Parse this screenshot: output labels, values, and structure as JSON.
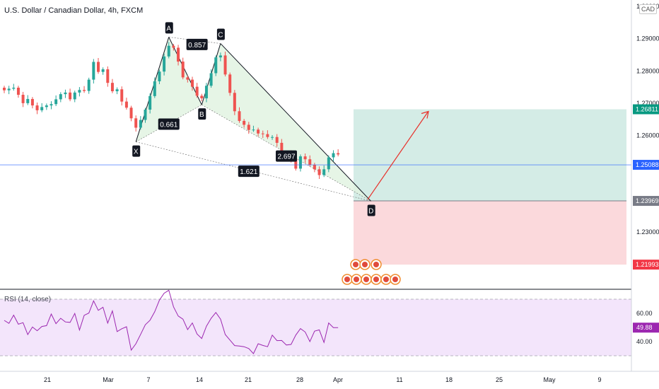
{
  "header": {
    "title": "U.S. Dollar / Canadian Dollar, 4h, FXCM",
    "currency": "CAD"
  },
  "colors": {
    "up": "#26a69a",
    "down": "#ef5350",
    "candle": "#131722",
    "pattern_fill": "#e0f2e0",
    "pattern_line": "#131722",
    "target_zone": "#d4ece6",
    "stop_zone": "#fbd9dc",
    "price_line": "#2962ff",
    "rsi_line": "#9c27b0",
    "rsi_band": "#f3e5fb",
    "arrow": "#e8312b"
  },
  "price_axis": {
    "min": 1.2125,
    "max": 1.302,
    "ticks": [
      "1.30000",
      "1.29000",
      "1.28000",
      "1.27000",
      "1.26000",
      "1.25000",
      "1.24000",
      "1.23000",
      "1.22000"
    ]
  },
  "price_labels": [
    {
      "value": 1.26811,
      "text": "1.26811",
      "bg": "#089981"
    },
    {
      "value": 1.25088,
      "text": "1.25088",
      "bg": "#2962ff"
    },
    {
      "value": 1.23969,
      "text": "1.23969",
      "bg": "#787b86"
    },
    {
      "value": 1.21993,
      "text": "1.21993",
      "bg": "#f23645"
    }
  ],
  "time_axis": {
    "labels": [
      "21",
      "Mar",
      "7",
      "14",
      "21",
      "28",
      "Apr",
      "11",
      "18",
      "25",
      "May",
      "9"
    ]
  },
  "pattern": {
    "points": [
      {
        "label": "X",
        "bar": 28,
        "price": 1.258
      },
      {
        "label": "A",
        "bar": 35,
        "price": 1.2905
      },
      {
        "label": "B",
        "bar": 42,
        "price": 1.2695
      },
      {
        "label": "C",
        "bar": 46,
        "price": 1.2885
      },
      {
        "label": "D",
        "bar": 78,
        "price": 1.2396
      }
    ],
    "ratios": [
      {
        "text": "0.857",
        "bar": 41,
        "price": 1.2882
      },
      {
        "text": "0.661",
        "bar": 35,
        "price": 1.2635
      },
      {
        "text": "2.697",
        "bar": 60,
        "price": 1.2536
      },
      {
        "text": "1.621",
        "bar": 52,
        "price": 1.2489
      }
    ]
  },
  "trade": {
    "target": 1.26811,
    "entry": 1.23969,
    "stop": 1.21993
  },
  "chart_data": {
    "type": "candlestick",
    "title": "U.S. Dollar / Canadian Dollar, 4h, FXCM",
    "y_range": [
      1.2125,
      1.302
    ],
    "close": [
      1.274,
      1.2745,
      1.2748,
      1.2726,
      1.27,
      1.2713,
      1.2693,
      1.2678,
      1.2688,
      1.2693,
      1.2697,
      1.2712,
      1.2728,
      1.2733,
      1.2712,
      1.2733,
      1.2741,
      1.2738,
      1.2773,
      1.2828,
      1.2797,
      1.2805,
      1.2763,
      1.2737,
      1.2743,
      1.2705,
      1.2686,
      1.2653,
      1.2624,
      1.2648,
      1.268,
      1.2722,
      1.2768,
      1.2798,
      1.2845,
      1.2878,
      1.2872,
      1.2829,
      1.278,
      1.2773,
      1.2751,
      1.2723,
      1.2715,
      1.2754,
      1.2793,
      1.2842,
      1.2848,
      1.2789,
      1.2732,
      1.2675,
      1.2645,
      1.2633,
      1.2617,
      1.2618,
      1.2606,
      1.2604,
      1.2595,
      1.2595,
      1.2577,
      1.254,
      1.2545,
      1.2528,
      1.2497,
      1.2535,
      1.2526,
      1.2509,
      1.2495,
      1.2477,
      1.2495,
      1.2532,
      1.2545,
      1.2541
    ],
    "rsi": {
      "name": "RSI (14, close)",
      "levels": [
        70,
        30
      ],
      "ticks": [
        "60.00",
        "40.00"
      ],
      "last": "49.88",
      "values": [
        55.0,
        52.9,
        58.7,
        52.3,
        53.4,
        45.0,
        50.3,
        47.7,
        50.7,
        51.3,
        59.5,
        52.7,
        56.5,
        53.9,
        53.6,
        59.9,
        48.2,
        58.6,
        60.2,
        68.8,
        62.1,
        64.3,
        53.1,
        61.7,
        47.1,
        49.1,
        50.5,
        34.0,
        38.5,
        45.1,
        51.9,
        55.1,
        61.1,
        69.3,
        74.2,
        76.3,
        64.6,
        58.1,
        55.9,
        48.5,
        53.2,
        45.4,
        42.2,
        50.9,
        56.5,
        60.6,
        55.9,
        45.0,
        41.1,
        37.2,
        36.9,
        36.4,
        35.1,
        31.5,
        38.5,
        37.3,
        36.4,
        44.6,
        40.7,
        40.8,
        37.6,
        38.0,
        44.6,
        49.2,
        46.8,
        40.0,
        47.4,
        48.3,
        39.4,
        53.2,
        49.9,
        49.88
      ]
    }
  }
}
